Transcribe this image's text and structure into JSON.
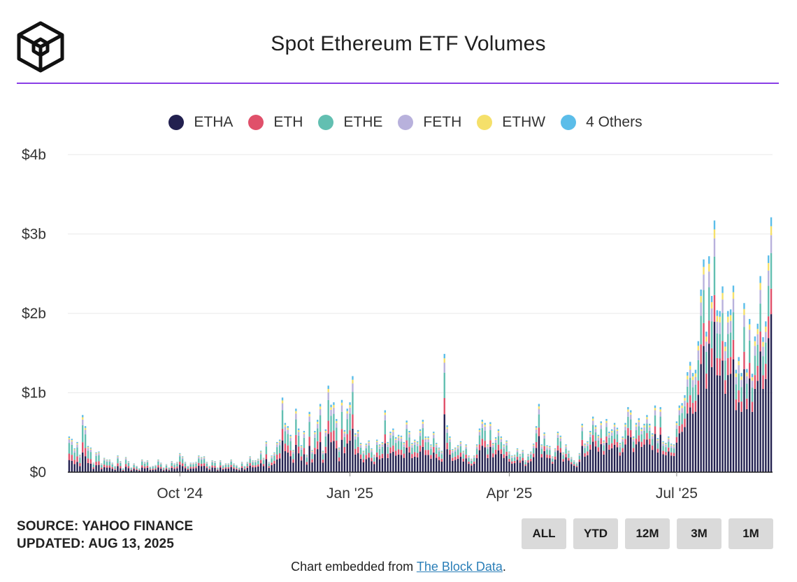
{
  "header": {
    "title": "Spot Ethereum ETF Volumes",
    "logo_icon": "the-block-cube-icon"
  },
  "colors": {
    "accent_rule": "#8a3ee6",
    "ETHA": "#22204f",
    "ETH": "#e0506a",
    "ETHE": "#62bfb1",
    "FETH": "#b8b1dc",
    "ETHW": "#f5e06a",
    "Others": "#5bbde9"
  },
  "legend": [
    {
      "key": "ETHA",
      "label": "ETHA"
    },
    {
      "key": "ETH",
      "label": "ETH"
    },
    {
      "key": "ETHE",
      "label": "ETHE"
    },
    {
      "key": "FETH",
      "label": "FETH"
    },
    {
      "key": "ETHW",
      "label": "ETHW"
    },
    {
      "key": "Others",
      "label": "4 Others"
    }
  ],
  "chart_data": {
    "type": "bar",
    "stacked": true,
    "title": "Spot Ethereum ETF Volumes",
    "xlabel": "",
    "ylabel": "",
    "ylim": [
      0,
      4
    ],
    "y_unit": "billions USD",
    "y_ticks": [
      {
        "value": 0,
        "label": "$0"
      },
      {
        "value": 1,
        "label": "$1b"
      },
      {
        "value": 2,
        "label": "$2b"
      },
      {
        "value": 3,
        "label": "$3b"
      },
      {
        "value": 4,
        "label": "$4b"
      }
    ],
    "x_ticks": [
      {
        "index": 41,
        "label": "Oct '24"
      },
      {
        "index": 104,
        "label": "Jan '25"
      },
      {
        "index": 163,
        "label": "Apr '25"
      },
      {
        "index": 225,
        "label": "Jul '25"
      }
    ],
    "grid": true,
    "legend_position": "top-center",
    "series_order": [
      "ETHA",
      "ETH",
      "ETHE",
      "FETH",
      "ETHW",
      "Others"
    ],
    "totals": [
      0.45,
      0.42,
      0.3,
      0.38,
      0.22,
      0.72,
      0.58,
      0.33,
      0.31,
      0.12,
      0.25,
      0.26,
      0.11,
      0.18,
      0.16,
      0.16,
      0.12,
      0.08,
      0.21,
      0.14,
      0.05,
      0.19,
      0.14,
      0.06,
      0.11,
      0.08,
      0.05,
      0.16,
      0.13,
      0.15,
      0.07,
      0.08,
      0.09,
      0.16,
      0.12,
      0.06,
      0.1,
      0.06,
      0.14,
      0.11,
      0.13,
      0.24,
      0.2,
      0.13,
      0.08,
      0.12,
      0.12,
      0.13,
      0.21,
      0.19,
      0.2,
      0.13,
      0.08,
      0.15,
      0.14,
      0.06,
      0.15,
      0.09,
      0.11,
      0.11,
      0.16,
      0.11,
      0.09,
      0.06,
      0.13,
      0.08,
      0.13,
      0.2,
      0.15,
      0.15,
      0.17,
      0.27,
      0.18,
      0.39,
      0.13,
      0.21,
      0.25,
      0.38,
      0.41,
      0.94,
      0.62,
      0.58,
      0.47,
      0.28,
      0.8,
      0.55,
      0.34,
      0.52,
      0.22,
      0.76,
      0.28,
      0.52,
      0.66,
      0.86,
      0.27,
      0.54,
      1.09,
      0.85,
      0.88,
      0.67,
      0.31,
      0.91,
      0.53,
      0.8,
      0.88,
      1.21,
      0.49,
      0.53,
      0.37,
      0.27,
      0.36,
      0.4,
      0.3,
      0.22,
      0.41,
      0.35,
      0.38,
      0.78,
      0.38,
      0.51,
      0.55,
      0.44,
      0.47,
      0.46,
      0.38,
      0.65,
      0.52,
      0.37,
      0.41,
      0.39,
      0.54,
      0.66,
      0.45,
      0.45,
      0.35,
      0.51,
      0.37,
      0.31,
      0.27,
      1.49,
      0.59,
      0.45,
      0.29,
      0.31,
      0.34,
      0.39,
      0.27,
      0.35,
      0.21,
      0.17,
      0.21,
      0.35,
      0.55,
      0.66,
      0.62,
      0.35,
      0.63,
      0.37,
      0.44,
      0.54,
      0.45,
      0.35,
      0.4,
      0.26,
      0.21,
      0.22,
      0.3,
      0.23,
      0.28,
      0.15,
      0.23,
      0.26,
      0.36,
      0.58,
      0.86,
      0.35,
      0.5,
      0.34,
      0.33,
      0.2,
      0.3,
      0.51,
      0.46,
      0.25,
      0.35,
      0.27,
      0.19,
      0.15,
      0.12,
      0.24,
      0.61,
      0.36,
      0.39,
      0.52,
      0.7,
      0.59,
      0.47,
      0.64,
      0.4,
      0.67,
      0.51,
      0.54,
      0.62,
      0.56,
      0.37,
      0.45,
      0.62,
      0.82,
      0.78,
      0.45,
      0.62,
      0.68,
      0.56,
      0.61,
      0.72,
      0.61,
      0.49,
      0.84,
      0.43,
      0.82,
      0.39,
      0.37,
      0.45,
      0.36,
      0.35,
      0.64,
      0.84,
      0.87,
      0.97,
      1.26,
      1.39,
      1.25,
      1.29,
      1.65,
      2.3,
      2.68,
      1.77,
      2.72,
      2.22,
      3.17,
      2.04,
      2.03,
      2.34,
      1.64,
      2.03,
      2.05,
      2.35,
      1.29,
      1.45,
      1.25,
      2.13,
      1.3,
      1.93,
      1.24,
      1.71,
      1.87,
      2.47,
      1.7,
      1.9,
      2.73,
      3.21
    ],
    "shares": {
      "ETHA": [
        0.34,
        0.62
      ],
      "ETH": [
        0.18,
        0.1
      ],
      "ETHE": [
        0.3,
        0.14
      ],
      "FETH": [
        0.1,
        0.07
      ],
      "ETHW": [
        0.04,
        0.035
      ],
      "Others": [
        0.04,
        0.035
      ]
    },
    "shares_note": "share of each bar's total at [start, end] of the period"
  },
  "footer": {
    "source_line": "SOURCE: YAHOO FINANCE",
    "updated_line": "UPDATED: AUG 13, 2025",
    "range_buttons": [
      "ALL",
      "YTD",
      "12M",
      "3M",
      "1M"
    ],
    "embed_prefix": "Chart embedded from ",
    "embed_link": "The Block Data",
    "embed_suffix": "."
  }
}
